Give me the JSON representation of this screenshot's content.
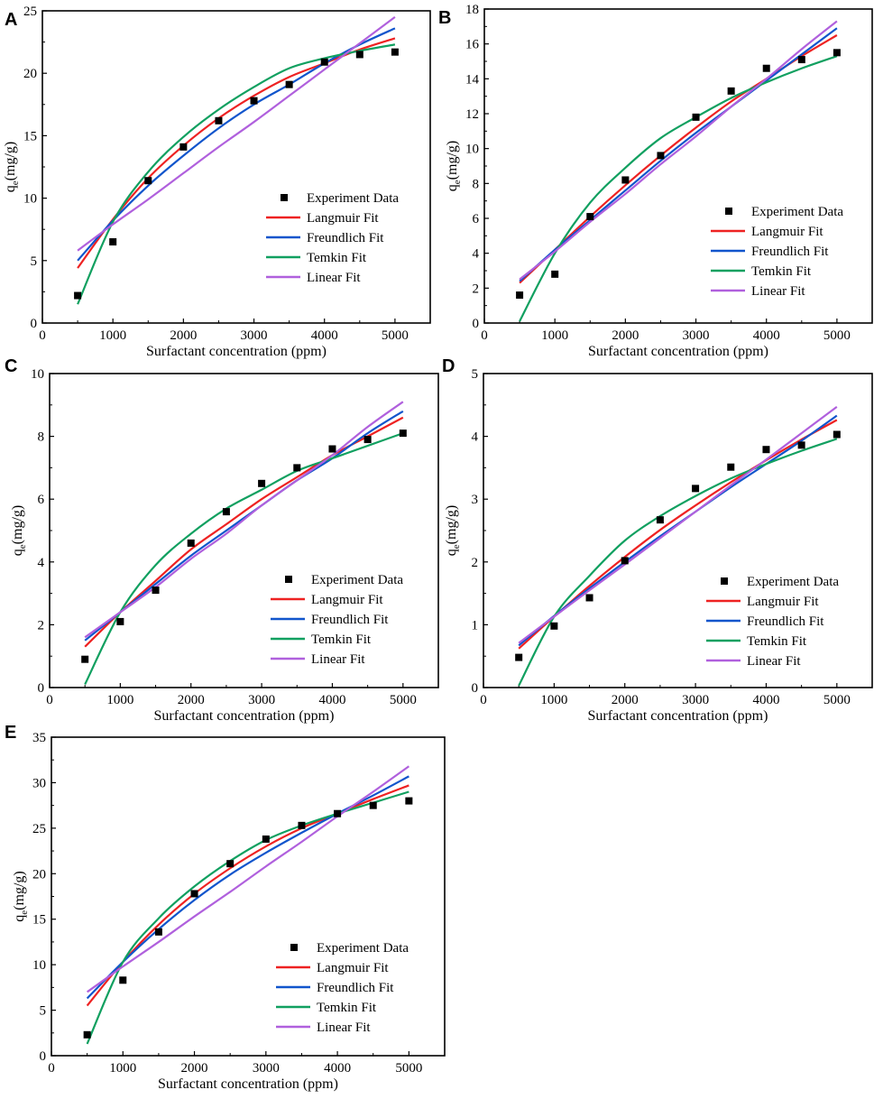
{
  "chart_data": [
    {
      "panel": "A",
      "type": "scatter",
      "xlabel": "Surfactant concentration (ppm)",
      "ylabel_main": "q",
      "ylabel_sub": "e",
      "ylabel_unit": "(mg/g)",
      "xlim": [
        0,
        5500
      ],
      "ylim": [
        0,
        25
      ],
      "xticks": [
        "0",
        "1000",
        "2000",
        "3000",
        "4000",
        "5000"
      ],
      "yticks": [
        "0",
        "5",
        "10",
        "15",
        "20",
        "25"
      ],
      "experiment": {
        "x": [
          500,
          1000,
          1500,
          2000,
          2500,
          3000,
          3500,
          4000,
          4500,
          5000
        ],
        "y": [
          2.2,
          6.5,
          11.4,
          14.1,
          16.2,
          17.8,
          19.1,
          20.9,
          21.5,
          21.7
        ]
      },
      "fits": [
        {
          "name": "Langmuir Fit",
          "color": "#ee2222",
          "y": [
            4.4,
            8.3,
            11.6,
            14.2,
            16.4,
            18.2,
            19.7,
            20.8,
            21.9,
            22.8
          ]
        },
        {
          "name": "Freundlich Fit",
          "color": "#1155cc",
          "y": [
            5.0,
            8.2,
            11.0,
            13.4,
            15.6,
            17.5,
            19.1,
            20.8,
            22.3,
            23.6
          ]
        },
        {
          "name": "Temkin Fit",
          "color": "#11a060",
          "y": [
            1.5,
            8.1,
            12.1,
            14.9,
            17.1,
            18.9,
            20.4,
            21.2,
            21.8,
            22.3
          ]
        },
        {
          "name": "Linear Fit",
          "color": "#b060dd",
          "y": [
            5.8,
            7.9,
            9.9,
            12.0,
            14.1,
            16.1,
            18.2,
            20.3,
            22.4,
            24.5
          ]
        }
      ],
      "legend": [
        "Experiment Data",
        "Langmuir Fit",
        "Freundlich Fit",
        "Temkin Fit",
        "Linear Fit"
      ]
    },
    {
      "panel": "B",
      "type": "scatter",
      "xlabel": "Surfactant concentration (ppm)",
      "ylabel_main": "q",
      "ylabel_sub": "e",
      "ylabel_unit": "(mg/g)",
      "xlim": [
        0,
        5500
      ],
      "ylim": [
        0,
        18
      ],
      "xticks": [
        "0",
        "1000",
        "2000",
        "3000",
        "4000",
        "5000"
      ],
      "yticks": [
        "0",
        "2",
        "4",
        "6",
        "8",
        "10",
        "12",
        "14",
        "16",
        "18"
      ],
      "experiment": {
        "x": [
          500,
          1000,
          1500,
          2000,
          2500,
          3000,
          3500,
          4000,
          4500,
          5000
        ],
        "y": [
          1.6,
          2.8,
          6.1,
          8.2,
          9.6,
          11.8,
          13.3,
          14.6,
          15.1,
          15.5
        ]
      },
      "fits": [
        {
          "name": "Langmuir Fit",
          "color": "#ee2222",
          "y": [
            2.3,
            4.2,
            6.1,
            7.9,
            9.6,
            11.2,
            12.7,
            14.0,
            15.3,
            16.5
          ]
        },
        {
          "name": "Freundlich Fit",
          "color": "#1155cc",
          "y": [
            2.4,
            4.2,
            5.9,
            7.6,
            9.3,
            10.9,
            12.4,
            13.9,
            15.4,
            16.9
          ]
        },
        {
          "name": "Temkin Fit",
          "color": "#11a060",
          "y": [
            0.1,
            4.0,
            6.9,
            8.9,
            10.6,
            11.8,
            12.9,
            13.8,
            14.6,
            15.3
          ]
        },
        {
          "name": "Linear Fit",
          "color": "#b060dd",
          "y": [
            2.5,
            4.1,
            5.8,
            7.4,
            9.1,
            10.7,
            12.4,
            14.0,
            15.7,
            17.3
          ]
        }
      ],
      "legend": [
        "Experiment Data",
        "Langmuir Fit",
        "Freundlich Fit",
        "Temkin Fit",
        "Linear Fit"
      ]
    },
    {
      "panel": "C",
      "type": "scatter",
      "xlabel": "Surfactant concentration (ppm)",
      "ylabel_main": "q",
      "ylabel_sub": "e",
      "ylabel_unit": "(mg/g)",
      "xlim": [
        0,
        5500
      ],
      "ylim": [
        0,
        10
      ],
      "xticks": [
        "0",
        "1000",
        "2000",
        "3000",
        "4000",
        "5000"
      ],
      "yticks": [
        "0",
        "2",
        "4",
        "6",
        "8",
        "10"
      ],
      "experiment": {
        "x": [
          500,
          1000,
          1500,
          2000,
          2500,
          3000,
          3500,
          4000,
          4500,
          5000
        ],
        "y": [
          0.9,
          2.1,
          3.1,
          4.6,
          5.6,
          6.5,
          7.0,
          7.6,
          7.9,
          8.1
        ]
      },
      "fits": [
        {
          "name": "Langmuir Fit",
          "color": "#ee2222",
          "y": [
            1.3,
            2.4,
            3.4,
            4.4,
            5.2,
            6.0,
            6.7,
            7.4,
            8.0,
            8.6
          ]
        },
        {
          "name": "Freundlich Fit",
          "color": "#1155cc",
          "y": [
            1.5,
            2.4,
            3.3,
            4.2,
            5.0,
            5.8,
            6.6,
            7.3,
            8.1,
            8.8
          ]
        },
        {
          "name": "Temkin Fit",
          "color": "#11a060",
          "y": [
            0.1,
            2.4,
            3.9,
            4.9,
            5.7,
            6.3,
            6.9,
            7.3,
            7.7,
            8.1
          ]
        },
        {
          "name": "Linear Fit",
          "color": "#b060dd",
          "y": [
            1.6,
            2.4,
            3.2,
            4.1,
            4.9,
            5.8,
            6.6,
            7.4,
            8.3,
            9.1
          ]
        }
      ],
      "legend": [
        "Experiment Data",
        "Langmuir Fit",
        "Freundlich Fit",
        "Temkin Fit",
        "Linear Fit"
      ]
    },
    {
      "panel": "D",
      "type": "scatter",
      "xlabel": "Surfactant concentration (ppm)",
      "ylabel_main": "q",
      "ylabel_sub": "e",
      "ylabel_unit": "(mg/g)",
      "xlim": [
        0,
        5500
      ],
      "ylim": [
        0,
        5
      ],
      "xticks": [
        "0",
        "1000",
        "2000",
        "3000",
        "4000",
        "5000"
      ],
      "yticks": [
        "0",
        "1",
        "2",
        "3",
        "4",
        "5"
      ],
      "experiment": {
        "x": [
          500,
          1000,
          1500,
          2000,
          2500,
          3000,
          3500,
          4000,
          4500,
          5000
        ],
        "y": [
          0.48,
          0.98,
          1.43,
          2.02,
          2.67,
          3.17,
          3.51,
          3.79,
          3.86,
          4.03
        ]
      },
      "fits": [
        {
          "name": "Langmuir Fit",
          "color": "#ee2222",
          "y": [
            0.62,
            1.13,
            1.62,
            2.08,
            2.51,
            2.9,
            3.27,
            3.62,
            3.95,
            4.26
          ]
        },
        {
          "name": "Freundlich Fit",
          "color": "#1155cc",
          "y": [
            0.67,
            1.14,
            1.58,
            2.0,
            2.41,
            2.8,
            3.19,
            3.56,
            3.93,
            4.33
          ]
        },
        {
          "name": "Temkin Fit",
          "color": "#11a060",
          "y": [
            0.03,
            1.13,
            1.78,
            2.34,
            2.73,
            3.05,
            3.33,
            3.56,
            3.77,
            3.96
          ]
        },
        {
          "name": "Linear Fit",
          "color": "#b060dd",
          "y": [
            0.71,
            1.13,
            1.55,
            1.96,
            2.38,
            2.8,
            3.22,
            3.63,
            4.05,
            4.47
          ]
        }
      ],
      "legend": [
        "Experiment Data",
        "Langmuir Fit",
        "Freundlich Fit",
        "Temkin Fit",
        "Linear Fit"
      ]
    },
    {
      "panel": "E",
      "type": "scatter",
      "xlabel": "Surfactant concentration (ppm)",
      "ylabel_main": "q",
      "ylabel_sub": "e",
      "ylabel_unit": "(mg/g)",
      "xlim": [
        0,
        5500
      ],
      "ylim": [
        0,
        35
      ],
      "xticks": [
        "0",
        "1000",
        "2000",
        "3000",
        "4000",
        "5000"
      ],
      "yticks": [
        "0",
        "5",
        "10",
        "15",
        "20",
        "25",
        "30",
        "35"
      ],
      "experiment": {
        "x": [
          500,
          1000,
          1500,
          2000,
          2500,
          3000,
          3500,
          4000,
          4500,
          5000
        ],
        "y": [
          2.3,
          8.3,
          13.6,
          17.8,
          21.1,
          23.8,
          25.3,
          26.6,
          27.5,
          28.0
        ]
      },
      "fits": [
        {
          "name": "Langmuir Fit",
          "color": "#ee2222",
          "y": [
            5.5,
            10.3,
            14.4,
            17.8,
            20.6,
            23.0,
            25.0,
            26.6,
            28.2,
            29.7
          ]
        },
        {
          "name": "Freundlich Fit",
          "color": "#1155cc",
          "y": [
            6.3,
            10.3,
            13.9,
            17.1,
            19.9,
            22.3,
            24.5,
            26.6,
            28.6,
            30.7
          ]
        },
        {
          "name": "Temkin Fit",
          "color": "#11a060",
          "y": [
            1.3,
            10.3,
            15.1,
            18.6,
            21.4,
            23.7,
            25.3,
            26.6,
            27.8,
            29.0
          ]
        },
        {
          "name": "Linear Fit",
          "color": "#b060dd",
          "y": [
            7.0,
            9.8,
            12.5,
            15.3,
            18.0,
            20.8,
            23.5,
            26.3,
            29.0,
            31.8
          ]
        }
      ],
      "legend": [
        "Experiment Data",
        "Langmuir Fit",
        "Freundlich Fit",
        "Temkin Fit",
        "Linear Fit"
      ]
    }
  ]
}
